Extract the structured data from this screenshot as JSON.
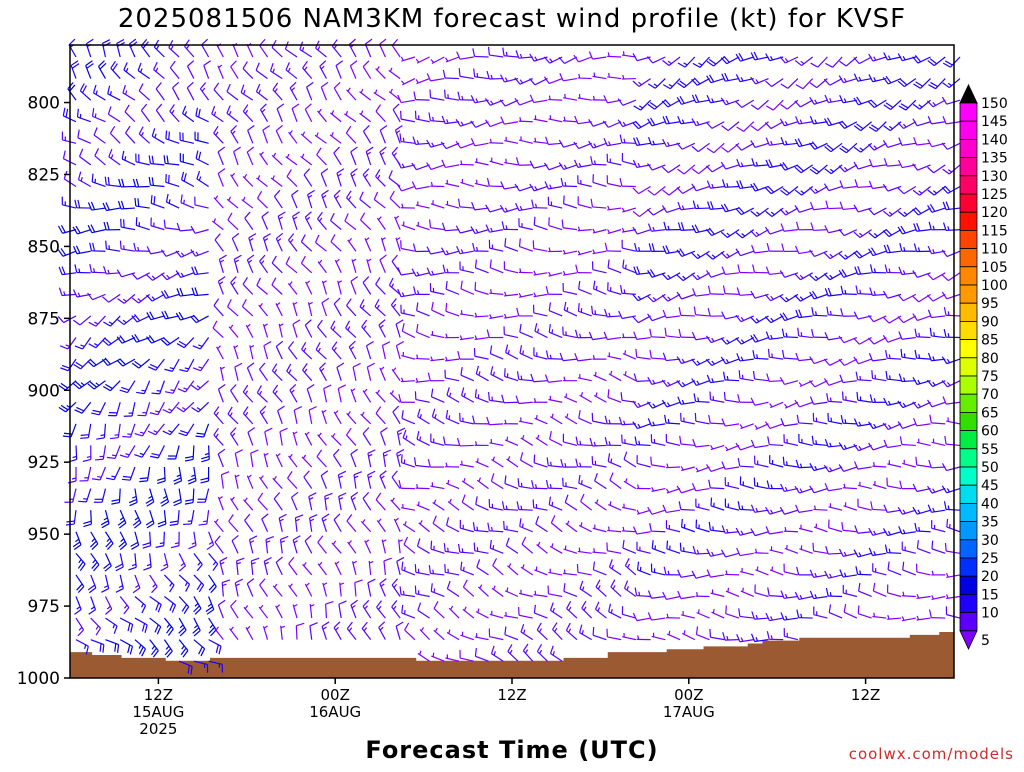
{
  "chart_data": {
    "type": "wind_barb_time_height",
    "title": "2025081506 NAM3KM forecast wind profile (kt) for KVSF",
    "xlabel": "Forecast Time (UTC)",
    "credit": "coolwx.com/models",
    "y_axis": {
      "scale": "pressure (hPa), decreasing upward",
      "ylim": [
        1000,
        780
      ],
      "ticks": [
        "800",
        "825",
        "850",
        "875",
        "900",
        "925",
        "950",
        "975",
        "1000"
      ]
    },
    "x_axis": {
      "range_hours_from_06Z_15AUG": [
        0,
        60
      ],
      "ticks": [
        {
          "hour": 6,
          "labels": [
            "12Z",
            "15AUG",
            "2025"
          ]
        },
        {
          "hour": 18,
          "labels": [
            "00Z",
            "16AUG"
          ]
        },
        {
          "hour": 30,
          "labels": [
            "12Z"
          ]
        },
        {
          "hour": 42,
          "labels": [
            "00Z",
            "17AUG"
          ]
        },
        {
          "hour": 54,
          "labels": [
            "12Z"
          ]
        }
      ]
    },
    "colorbar": {
      "units": "kt",
      "levels": [
        "5",
        "10",
        "15",
        "20",
        "25",
        "30",
        "35",
        "40",
        "45",
        "50",
        "55",
        "60",
        "65",
        "70",
        "75",
        "80",
        "85",
        "90",
        "95",
        "100",
        "105",
        "110",
        "115",
        "120",
        "125",
        "130",
        "135",
        "140",
        "145",
        "150"
      ],
      "colors": [
        "#7f00ff",
        "#5a00ff",
        "#1f00ff",
        "#0000e0",
        "#0030ff",
        "#0066ff",
        "#0099ff",
        "#00bbff",
        "#00ddee",
        "#00ffc8",
        "#00ff88",
        "#00ee44",
        "#33dd00",
        "#66ee00",
        "#aaff00",
        "#ddff00",
        "#ffff00",
        "#ffdd00",
        "#ffbb00",
        "#ff9900",
        "#ff8800",
        "#ff6600",
        "#ff4400",
        "#ff1100",
        "#ff0033",
        "#ff0066",
        "#ff0099",
        "#ff00cc",
        "#ff00ee",
        "#ff00ff"
      ]
    },
    "terrain": {
      "color": "#9c5a32",
      "surface_pressure_hPa": [
        {
          "hour": 0,
          "p": 991
        },
        {
          "hour": 1.5,
          "p": 992
        },
        {
          "hour": 3.5,
          "p": 993
        },
        {
          "hour": 6.5,
          "p": 994
        },
        {
          "hour": 9.5,
          "p": 993
        },
        {
          "hour": 20,
          "p": 993
        },
        {
          "hour": 23.5,
          "p": 994
        },
        {
          "hour": 29.5,
          "p": 994
        },
        {
          "hour": 33.5,
          "p": 993
        },
        {
          "hour": 36.5,
          "p": 991
        },
        {
          "hour": 37.5,
          "p": 991
        },
        {
          "hour": 40.5,
          "p": 990
        },
        {
          "hour": 43,
          "p": 989
        },
        {
          "hour": 46,
          "p": 988
        },
        {
          "hour": 47,
          "p": 987
        },
        {
          "hour": 49.5,
          "p": 986
        },
        {
          "hour": 57,
          "p": 985
        },
        {
          "hour": 59,
          "p": 984
        },
        {
          "hour": 60,
          "p": 984
        }
      ]
    },
    "barb_grid": {
      "hours_step": 1,
      "pressure_levels": [
        780,
        787.5,
        795,
        802.5,
        810,
        817.5,
        825,
        832.5,
        840,
        847.5,
        855,
        862.5,
        870,
        877.5,
        885,
        892.5,
        900,
        907.5,
        915,
        922.5,
        930,
        937.5,
        945,
        952.5,
        960,
        967.5,
        975,
        982.5,
        990
      ],
      "regimes": [
        {
          "hours": [
            0,
            9
          ],
          "upper": {
            "dir": 330,
            "spd": 15
          },
          "lower": {
            "dir": 120,
            "spd": 20
          }
        },
        {
          "hours": [
            10,
            22
          ],
          "upper": {
            "dir": 320,
            "spd": 10
          },
          "lower": {
            "dir": 340,
            "spd": 10
          }
        },
        {
          "hours": [
            23,
            38
          ],
          "upper": {
            "dir": 260,
            "spd": 10
          },
          "lower": {
            "dir": 300,
            "spd": 10
          }
        },
        {
          "hours": [
            39,
            60
          ],
          "upper": {
            "dir": 240,
            "spd": 15
          },
          "lower": {
            "dir": 280,
            "spd": 10
          }
        }
      ]
    }
  }
}
